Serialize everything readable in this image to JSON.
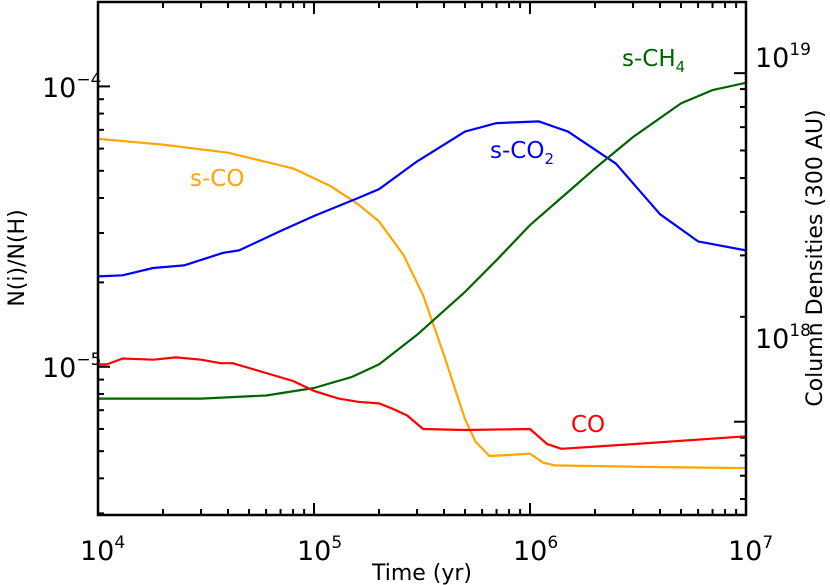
{
  "chart_data": {
    "type": "line",
    "title": "",
    "xlabel": "Time (yr)",
    "ylabel": "N(i)/N(H)",
    "ylabel_right": "Column Densities (300 AU)",
    "xscale": "log",
    "yscale": "log",
    "xlim": [
      10000,
      10000000
    ],
    "ylim": [
      2.96e-06,
      0.0002
    ],
    "ylim_right": [
      5.4e+17,
      1.6e+19
    ],
    "x_ticks": [
      {
        "base": "10",
        "exp": "4",
        "value": 10000
      },
      {
        "base": "10",
        "exp": "5",
        "value": 100000
      },
      {
        "base": "10",
        "exp": "6",
        "value": 1000000
      },
      {
        "base": "10",
        "exp": "7",
        "value": 10000000
      }
    ],
    "y_ticks_left": [
      {
        "base": "10",
        "exp": "−4",
        "value": 0.0001
      },
      {
        "base": "10",
        "exp": "−5",
        "value": 1e-05
      }
    ],
    "y_ticks_right": [
      {
        "base": "10",
        "exp": "19",
        "value": 1e+19
      },
      {
        "base": "10",
        "exp": "18",
        "value": 1e+18
      }
    ],
    "grid": false,
    "legend": "inline labels",
    "series": [
      {
        "name": "s-CO",
        "label": "s-CO",
        "color": "#FFA500",
        "x": [
          10000.0,
          20000.0,
          40000.0,
          80000.0,
          120000.0,
          160000.0,
          200000.0,
          260000.0,
          320000.0,
          400000.0,
          500000.0,
          560000.0,
          650000.0,
          1000000.0,
          1150000.0,
          1300000.0,
          3000000.0,
          10000000.0
        ],
        "values": [
          6.5e-05,
          6.2e-05,
          5.8e-05,
          5.1e-05,
          4.4e-05,
          3.8e-05,
          3.3e-05,
          2.5e-05,
          1.8e-05,
          1.1e-05,
          6.5e-06,
          5.4e-06,
          4.8e-06,
          4.9e-06,
          4.55e-06,
          4.45e-06,
          4.4e-06,
          4.35e-06
        ]
      },
      {
        "name": "s-CO2",
        "label": "s-CO",
        "label_sub": "2",
        "color": "#0000FF",
        "x": [
          10000.0,
          13000.0,
          18000.0,
          25000.0,
          38000.0,
          45000.0,
          70000.0,
          100000.0,
          160000.0,
          200000.0,
          300000.0,
          500000.0,
          700000.0,
          1100000.0,
          1500000.0,
          2500000.0,
          4000000.0,
          6000000.0,
          10000000.0
        ],
        "values": [
          2.1e-05,
          2.12e-05,
          2.25e-05,
          2.3e-05,
          2.55e-05,
          2.6e-05,
          3.05e-05,
          3.45e-05,
          4e-05,
          4.3e-05,
          5.4e-05,
          6.9e-05,
          7.4e-05,
          7.5e-05,
          6.9e-05,
          5.3e-05,
          3.5e-05,
          2.8e-05,
          2.6e-05
        ]
      },
      {
        "name": "s-CH4",
        "label": "s-CH",
        "label_sub": "4",
        "color": "#006400",
        "x": [
          10000.0,
          30000.0,
          60000.0,
          100000.0,
          150000.0,
          200000.0,
          300000.0,
          500000.0,
          700000.0,
          1000000.0,
          1500000.0,
          2000000.0,
          3000000.0,
          5000000.0,
          7000000.0,
          10000000.0
        ],
        "values": [
          7.7e-06,
          7.7e-06,
          7.9e-06,
          8.4e-06,
          9.2e-06,
          1.02e-05,
          1.3e-05,
          1.85e-05,
          2.4e-05,
          3.2e-05,
          4.2e-05,
          5.1e-05,
          6.6e-05,
          8.7e-05,
          9.7e-05,
          0.000103
        ]
      },
      {
        "name": "CO",
        "label": "CO",
        "color": "#FF0000",
        "x": [
          10000.0,
          11000.0,
          13000.0,
          18000.0,
          23000.0,
          30000.0,
          37000.0,
          42000.0,
          60000.0,
          80000.0,
          100000.0,
          130000.0,
          160000.0,
          200000.0,
          230000.0,
          270000.0,
          320000.0,
          500000.0,
          1000000.0,
          1200000.0,
          1400000.0,
          3000000.0,
          10000000.0
        ],
        "values": [
          1.02e-05,
          1.02e-05,
          1.07e-05,
          1.06e-05,
          1.08e-05,
          1.06e-05,
          1.03e-05,
          1.03e-05,
          9.5e-06,
          8.9e-06,
          8.2e-06,
          7.7e-06,
          7.5e-06,
          7.4e-06,
          7.1e-06,
          6.7e-06,
          6e-06,
          5.95e-06,
          6e-06,
          5.3e-06,
          5.1e-06,
          5.3e-06,
          5.65e-06
        ]
      }
    ]
  }
}
